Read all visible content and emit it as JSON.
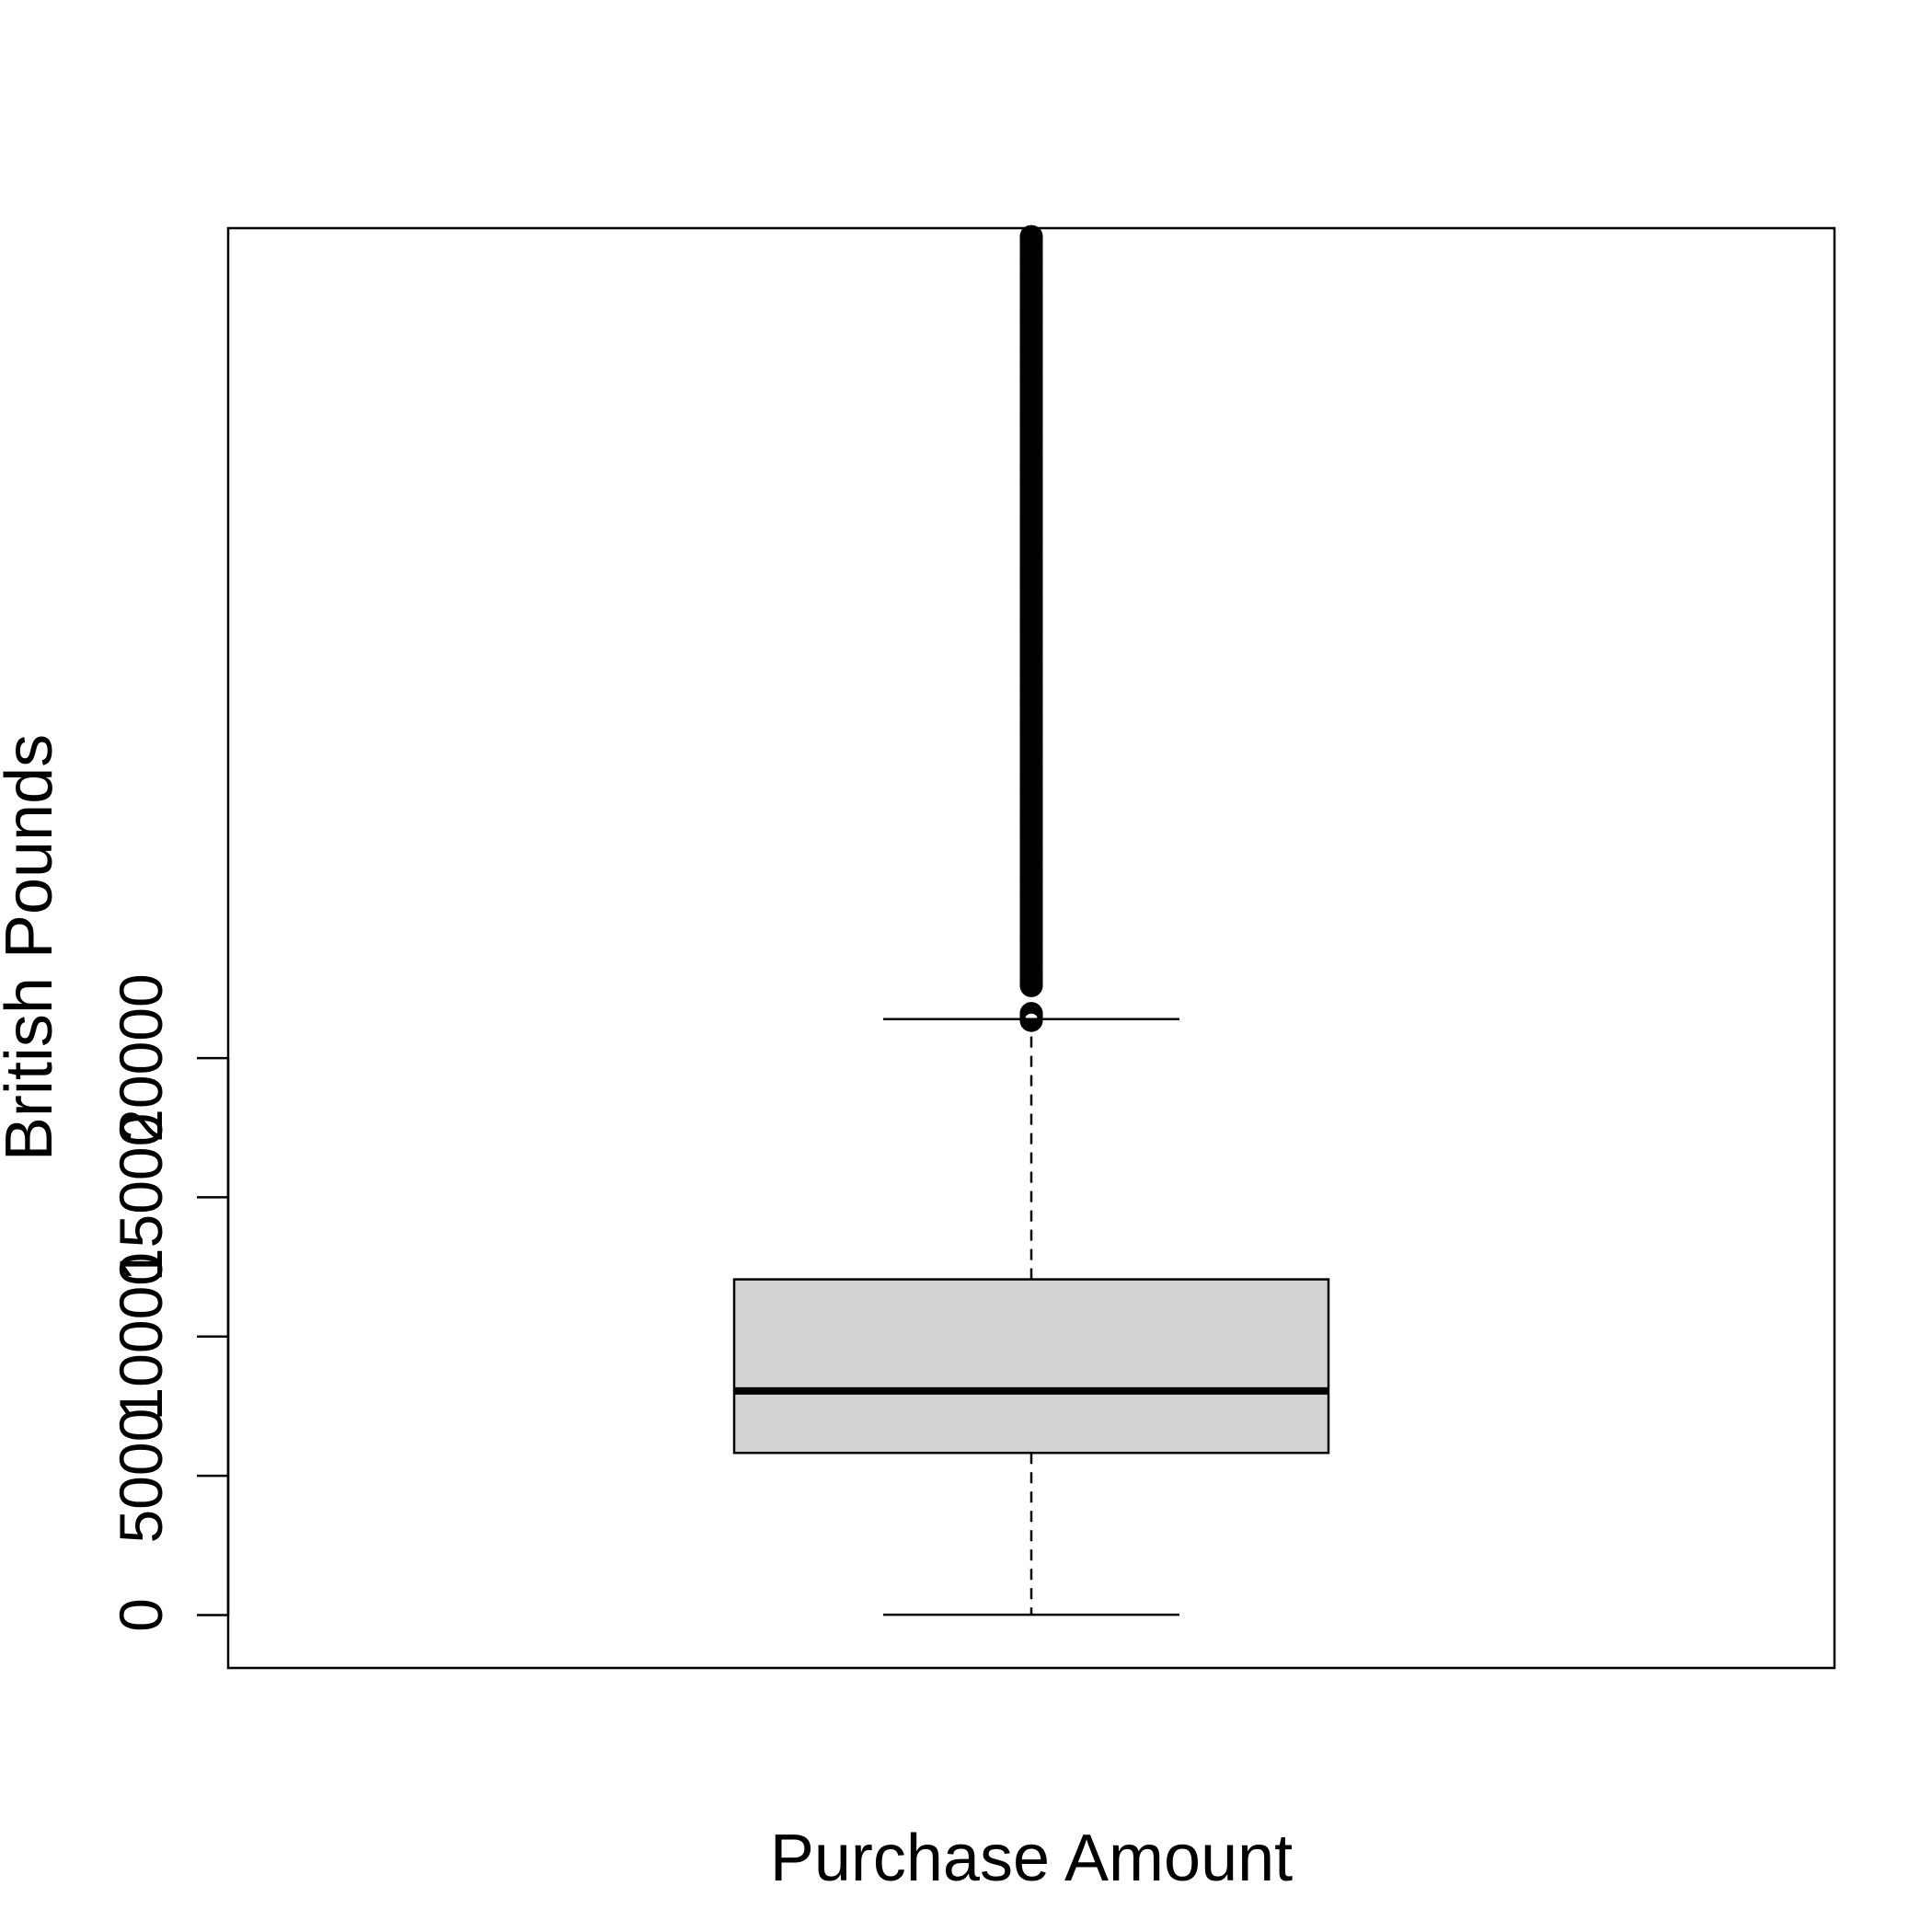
{
  "chart_data": {
    "type": "boxplot",
    "title": "",
    "xlabel": "Purchase Amount",
    "ylabel": "British Pounds",
    "ylim": [
      -1900,
      49800
    ],
    "y_ticks": [
      0,
      5000,
      10000,
      15000,
      20000
    ],
    "y_tick_labels": [
      "0",
      "5000",
      "10000",
      "15000",
      "20000"
    ],
    "grid": false,
    "series": [
      {
        "whisker_low": 12,
        "q1": 5823,
        "median": 8047,
        "q3": 12054,
        "whisker_high": 21400,
        "outliers": [
          21350,
          21400,
          21450,
          21500,
          21550,
          21600,
          22600,
          22700,
          22800,
          22900,
          23000,
          23100,
          23200,
          23300,
          23400,
          23500,
          23600,
          23700,
          23800,
          23900,
          24000,
          24100,
          24200,
          24300,
          24400,
          24500,
          24600,
          24700,
          24800,
          24900,
          25000,
          25100,
          25200,
          25300,
          25400,
          25500,
          25600,
          25700,
          25800,
          25900,
          26000,
          26100,
          26200,
          26300,
          26400,
          26500,
          26600,
          26700,
          26800,
          26900,
          27000,
          27100,
          27200,
          27300,
          27400,
          27500,
          27600,
          27700,
          27800,
          27900,
          28000,
          28100,
          28200,
          28300,
          28400,
          28500,
          28600,
          28700,
          28800,
          28900,
          29000,
          29100,
          29200,
          29300,
          29400,
          29500,
          29600,
          29700,
          29800,
          29900,
          30000,
          30100,
          30200,
          30300,
          30400,
          30500,
          30600,
          30700,
          30800,
          30900,
          31000,
          31100,
          31200,
          31300,
          31400,
          31500,
          31600,
          31700,
          31800,
          31900,
          32000,
          32100,
          32200,
          32300,
          32400,
          32500,
          32600,
          32700,
          32800,
          32900,
          33000,
          33100,
          33200,
          33300,
          33400,
          33500,
          33600,
          33700,
          33800,
          33900,
          34000,
          34100,
          34200,
          34300,
          34400,
          34500,
          34600,
          34700,
          34800,
          34900,
          35000,
          35100,
          35200,
          35300,
          35400,
          35500,
          35600,
          35700,
          35800,
          35900,
          36000,
          36100,
          36200,
          36300,
          36400,
          36500,
          36600,
          36700,
          36800,
          36900,
          37000,
          37100,
          37200,
          37300,
          37400,
          37500,
          37600,
          37700,
          37800,
          37900,
          38000,
          38100,
          38200,
          38300,
          38400,
          38500,
          38600,
          38700,
          38800,
          38900,
          39000,
          39100,
          39200,
          39300,
          39400,
          39500,
          39600,
          39700,
          39800,
          39900,
          40000,
          40100,
          40200,
          40300,
          40400,
          40500,
          40600,
          40700,
          40800,
          40900,
          41000,
          41100,
          41200,
          41300,
          41400,
          41500,
          41600,
          41700,
          41800,
          41900,
          42000,
          42100,
          42200,
          42300,
          42400,
          42500,
          42600,
          42700,
          42800,
          42900,
          43000,
          43100,
          43200,
          43300,
          43400,
          43500,
          43600,
          43700,
          43800,
          43900,
          44000,
          44100,
          44200,
          44300,
          44400,
          44500,
          44600,
          44700,
          44800,
          44900,
          45000,
          45100,
          45200,
          45300,
          45400,
          45500,
          45600,
          45700,
          45800,
          45900,
          46000,
          46100,
          46200,
          46300,
          46400,
          46500,
          46600,
          46700,
          46800,
          46900,
          47000,
          47100,
          47200,
          47300,
          47400,
          47500,
          47600,
          47700,
          47800,
          47900,
          48000,
          48100,
          48200,
          48300,
          48400,
          48500,
          48600,
          48700,
          48800,
          48900,
          49000,
          49100,
          49200,
          49300,
          49400,
          49500
        ]
      }
    ],
    "colors": {
      "box_fill": "#d3d3d3",
      "stroke": "#000000",
      "background": "#ffffff"
    }
  }
}
